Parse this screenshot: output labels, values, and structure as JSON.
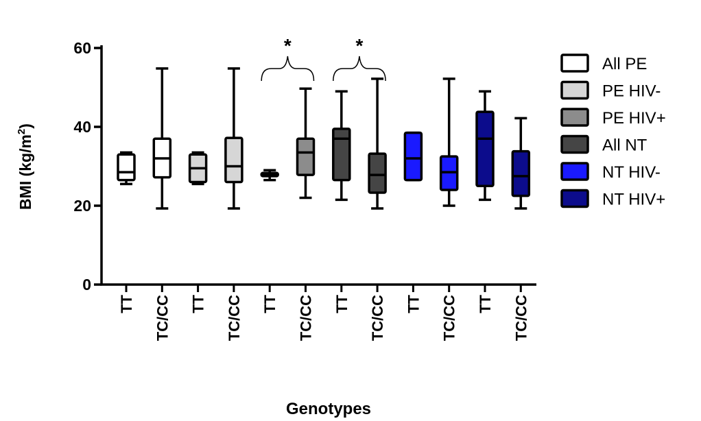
{
  "chart_data": {
    "type": "box",
    "xlabel": "Genotypes",
    "ylabel": "BMI (kg/m",
    "ylabel_sup": "2",
    "ylabel_close": ")",
    "ylim": [
      0,
      60
    ],
    "yticks": [
      0,
      20,
      40,
      60
    ],
    "categories": [
      "TT",
      "TC/CC",
      "TT",
      "TC/CC",
      "TT",
      "TC/CC",
      "TT",
      "TC/CC",
      "TT",
      "TC/CC",
      "TT",
      "TC/CC"
    ],
    "groups": [
      {
        "name": "All PE",
        "color": "#ffffff"
      },
      {
        "name": "PE HIV-",
        "color": "#d6d6d6"
      },
      {
        "name": "PE HIV+",
        "color": "#8c8c8c"
      },
      {
        "name": "All NT",
        "color": "#454545"
      },
      {
        "name": "NT HIV-",
        "color": "#1a1aff"
      },
      {
        "name": "NT HIV+",
        "color": "#0c0c8c"
      }
    ],
    "boxes": [
      {
        "group": 0,
        "category": "TT",
        "min": 25.5,
        "q1": 26.5,
        "median": 28.5,
        "q3": 33,
        "max": 33.5
      },
      {
        "group": 0,
        "category": "TC/CC",
        "min": 19.3,
        "q1": 27.2,
        "median": 32,
        "q3": 37,
        "max": 54.8
      },
      {
        "group": 1,
        "category": "TT",
        "min": 25.5,
        "q1": 26,
        "median": 29.5,
        "q3": 33,
        "max": 33.5
      },
      {
        "group": 1,
        "category": "TC/CC",
        "min": 19.3,
        "q1": 26,
        "median": 30,
        "q3": 37.2,
        "max": 54.8
      },
      {
        "group": 2,
        "category": "TT",
        "min": 26.5,
        "q1": 27.5,
        "median": 28,
        "q3": 28.3,
        "max": 29
      },
      {
        "group": 2,
        "category": "TC/CC",
        "min": 22,
        "q1": 27.8,
        "median": 33.5,
        "q3": 37,
        "max": 49.7
      },
      {
        "group": 3,
        "category": "TT",
        "min": 21.5,
        "q1": 26.5,
        "median": 37,
        "q3": 39.5,
        "max": 49
      },
      {
        "group": 3,
        "category": "TC/CC",
        "min": 19.3,
        "q1": 23.3,
        "median": 27.8,
        "q3": 33.2,
        "max": 52.2
      },
      {
        "group": 4,
        "category": "TT",
        "min": 26.5,
        "q1": 26.5,
        "median": 32,
        "q3": 38.5,
        "max": 38.5
      },
      {
        "group": 4,
        "category": "TC/CC",
        "min": 20,
        "q1": 24,
        "median": 28.5,
        "q3": 32.5,
        "max": 52.2
      },
      {
        "group": 5,
        "category": "TT",
        "min": 21.5,
        "q1": 25,
        "median": 37,
        "q3": 43.8,
        "max": 49
      },
      {
        "group": 5,
        "category": "TC/CC",
        "min": 19.3,
        "q1": 22.5,
        "median": 27.5,
        "q3": 33.8,
        "max": 42.2
      }
    ],
    "significance": [
      {
        "from": 4,
        "to": 5,
        "label": "*"
      },
      {
        "from": 6,
        "to": 7,
        "label": "*"
      }
    ],
    "grid": false,
    "legend_position": "right"
  }
}
